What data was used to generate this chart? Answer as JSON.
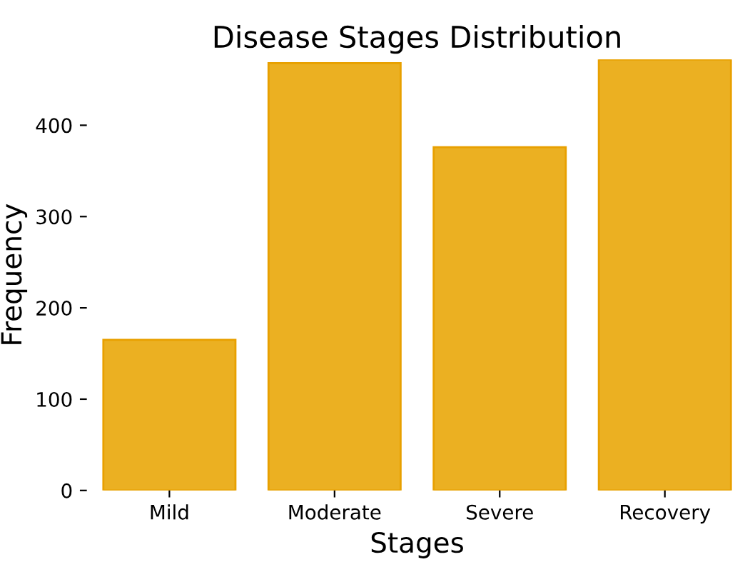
{
  "chart_data": {
    "type": "bar",
    "title": "Disease Stages Distribution",
    "xlabel": "Stages",
    "ylabel": "Frequency",
    "categories": [
      "Mild",
      "Moderate",
      "Severe",
      "Recovery"
    ],
    "values": [
      165,
      468,
      376,
      472
    ],
    "color": "#ebb022",
    "ylim": [
      0,
      472
    ],
    "yticks": [
      0,
      100,
      200,
      300,
      400
    ],
    "grid": false
  }
}
